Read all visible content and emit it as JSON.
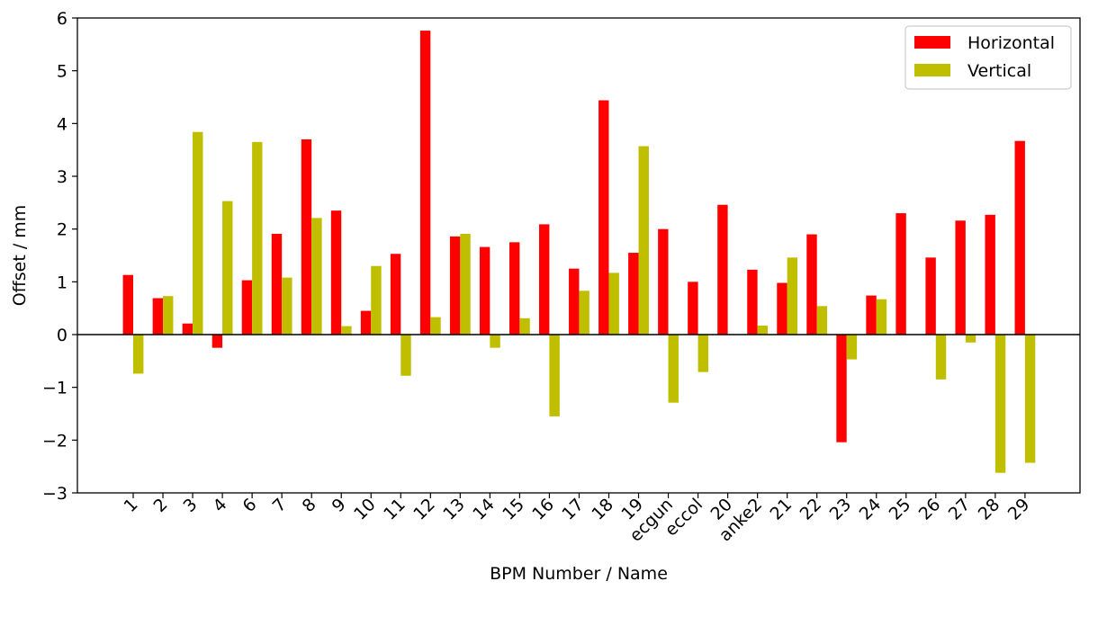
{
  "chart_data": {
    "type": "bar",
    "title": "",
    "xlabel": "BPM Number / Name",
    "ylabel": "Offset / mm",
    "ylim": [
      -3,
      6
    ],
    "yticks": [
      -3,
      -2,
      -1,
      0,
      1,
      2,
      3,
      4,
      5,
      6
    ],
    "ytick_labels": [
      "−3",
      "−2",
      "−1",
      "0",
      "1",
      "2",
      "3",
      "4",
      "5",
      "6"
    ],
    "categories": [
      "1",
      "2",
      "3",
      "4",
      "6",
      "7",
      "8",
      "9",
      "10",
      "11",
      "12",
      "13",
      "14",
      "15",
      "16",
      "17",
      "18",
      "19",
      "ecgun",
      "eccol",
      "20",
      "anke2",
      "21",
      "22",
      "23",
      "24",
      "25",
      "26",
      "27",
      "28",
      "29"
    ],
    "series": [
      {
        "name": "Horizontal",
        "color": "#ff0000",
        "values": [
          1.13,
          0.69,
          0.21,
          -0.25,
          1.03,
          1.91,
          3.7,
          2.35,
          0.45,
          1.53,
          5.76,
          1.86,
          1.66,
          1.75,
          2.09,
          1.25,
          4.44,
          1.55,
          2.0,
          1.0,
          2.46,
          1.23,
          0.98,
          1.9,
          -2.04,
          0.74,
          2.3,
          1.46,
          2.16,
          2.27,
          3.67
        ]
      },
      {
        "name": "Vertical",
        "color": "#bfbf00",
        "values": [
          -0.74,
          0.73,
          3.84,
          2.53,
          3.65,
          1.08,
          2.21,
          0.16,
          1.3,
          -0.78,
          0.33,
          1.91,
          -0.25,
          0.31,
          -1.55,
          0.83,
          1.17,
          3.57,
          -1.29,
          -0.71,
          0.0,
          0.17,
          1.46,
          0.54,
          -0.47,
          0.67,
          0.0,
          -0.85,
          -0.15,
          -2.62,
          -2.43
        ]
      }
    ],
    "legend_position": "top-right",
    "grid": false
  }
}
